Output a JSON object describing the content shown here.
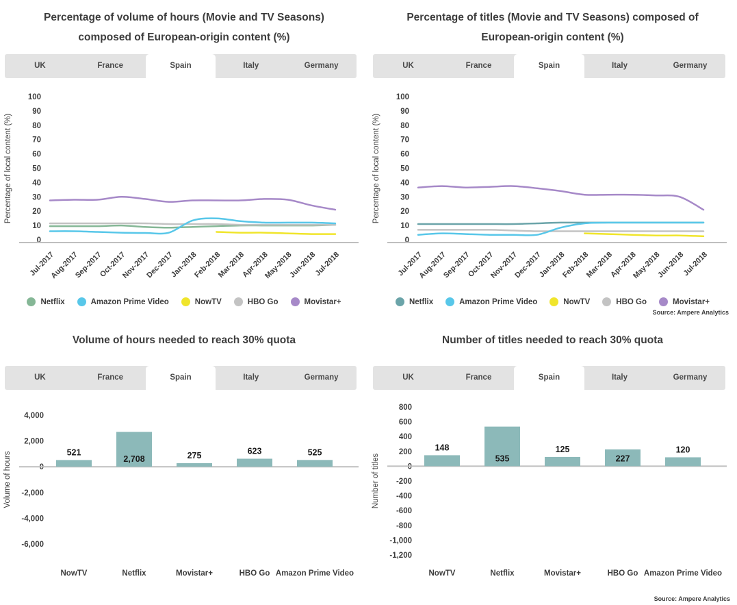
{
  "tabs": {
    "items": [
      "UK",
      "France",
      "Spain",
      "Italy",
      "Germany"
    ],
    "selected": "Spain"
  },
  "colors": {
    "netflix_green": "#85b796",
    "netflix_teal": "#6ba4a9",
    "amazon_cyan": "#58c7e9",
    "nowtv_yellow": "#f0e52b",
    "hbo_gray": "#c3c3c3",
    "movistar_purple": "#a689c8",
    "bar_teal": "#8cb9b9",
    "axis_line": "#bfbfbf",
    "text_dark": "#3d3d3d"
  },
  "source_note": "Source: Ampere Analytics",
  "chart_data": [
    {
      "type": "line",
      "title": "Percentage of volume of hours (Movie and TV Seasons) composed of European-origin content (%)",
      "ylabel": "Percentage of local content (%)",
      "ylim": [
        0,
        100
      ],
      "ytick_step": 10,
      "grid": false,
      "legend_position": "bottom",
      "x": [
        "Jul-2017",
        "Aug-2017",
        "Sep-2017",
        "Oct-2017",
        "Nov-2017",
        "Dec-2017",
        "Jan-2018",
        "Feb-2018",
        "Mar-2018",
        "Apr-2018",
        "May-2018",
        "Jun-2018",
        "Jul-2018"
      ],
      "series": [
        {
          "name": "Netflix",
          "color_key": "netflix_green",
          "values": [
            9.5,
            9.5,
            9.5,
            10,
            9,
            8.5,
            9,
            9.5,
            10,
            10,
            10,
            10,
            10.5
          ]
        },
        {
          "name": "HBO Go",
          "color_key": "hbo_gray",
          "values": [
            11.5,
            11.5,
            11.5,
            11.5,
            11.5,
            11,
            11,
            11,
            10.5,
            10.5,
            10.5,
            10.5,
            10.5
          ]
        },
        {
          "name": "Amazon Prime Video",
          "color_key": "amazon_cyan",
          "values": [
            6,
            6,
            5.5,
            5,
            4.8,
            5,
            13.5,
            15,
            13,
            12,
            12,
            12,
            11.5
          ]
        },
        {
          "name": "NowTV",
          "color_key": "nowtv_yellow",
          "values": [
            null,
            null,
            null,
            null,
            null,
            null,
            null,
            5.5,
            5,
            5,
            4.5,
            4,
            4
          ]
        },
        {
          "name": "Movistar+",
          "color_key": "movistar_purple",
          "values": [
            27.5,
            28,
            28,
            30,
            28.5,
            26.5,
            27.5,
            27.5,
            27.5,
            28.5,
            28,
            24,
            21
          ]
        }
      ],
      "legend": [
        "Netflix",
        "Amazon Prime Video",
        "NowTV",
        "HBO Go",
        "Movistar+"
      ],
      "show_source": false
    },
    {
      "type": "line",
      "title": "Percentage of titles (Movie and TV Seasons) composed of European-origin content (%)",
      "ylabel": "Percentage of local content (%)",
      "ylim": [
        0,
        100
      ],
      "ytick_step": 10,
      "grid": false,
      "legend_position": "bottom",
      "x": [
        "Jul-2017",
        "Aug-2017",
        "Sep-2017",
        "Oct-2017",
        "Nov-2017",
        "Dec-2017",
        "Jan-2018",
        "Feb-2018",
        "Mar-2018",
        "Apr-2018",
        "May-2018",
        "Jun-2018",
        "Jul-2018"
      ],
      "series": [
        {
          "name": "Netflix",
          "color_key": "netflix_teal",
          "values": [
            11,
            11,
            11,
            11,
            11,
            11.5,
            12,
            12,
            12,
            12,
            12,
            12,
            12
          ]
        },
        {
          "name": "HBO Go",
          "color_key": "hbo_gray",
          "values": [
            7,
            7,
            7,
            7,
            6.5,
            6,
            6,
            6,
            6,
            6,
            6,
            6,
            6
          ]
        },
        {
          "name": "Amazon Prime Video",
          "color_key": "amazon_cyan",
          "values": [
            3.5,
            4.5,
            4,
            3.5,
            3.5,
            3.5,
            8.5,
            11.5,
            12,
            12,
            12,
            12,
            12
          ]
        },
        {
          "name": "NowTV",
          "color_key": "nowtv_yellow",
          "values": [
            null,
            null,
            null,
            null,
            null,
            null,
            null,
            4.5,
            4,
            3.5,
            3,
            3,
            2.5
          ]
        },
        {
          "name": "Movistar+",
          "color_key": "movistar_purple",
          "values": [
            36.5,
            37.5,
            36.5,
            37,
            37.5,
            36,
            34,
            31.5,
            31.5,
            31.5,
            31,
            30,
            21
          ]
        }
      ],
      "legend": [
        "Netflix",
        "Amazon Prime Video",
        "NowTV",
        "HBO Go",
        "Movistar+"
      ],
      "show_source": true
    },
    {
      "type": "bar",
      "title": "Volume of hours needed to reach 30% quota",
      "ylabel": "Volume of hours",
      "categories": [
        "NowTV",
        "Netflix",
        "Movistar+",
        "HBO Go",
        "Amazon Prime Video"
      ],
      "values": [
        521,
        2708,
        275,
        623,
        525
      ],
      "value_labels": [
        "521",
        "2,708",
        "275",
        "623",
        "525"
      ],
      "yticks": [
        4000,
        2000,
        0,
        -2000,
        -4000,
        -6000
      ],
      "ytick_labels": [
        "4,000",
        "2,000",
        "0",
        "-2,000",
        "-4,000",
        "-6,000"
      ],
      "grid": false,
      "show_source": false
    },
    {
      "type": "bar",
      "title": "Number of titles needed to reach 30% quota",
      "ylabel": "Number of titles",
      "categories": [
        "NowTV",
        "Netflix",
        "Movistar+",
        "HBO Go",
        "Amazon Prime Video"
      ],
      "values": [
        148,
        535,
        125,
        227,
        120
      ],
      "value_labels": [
        "148",
        "535",
        "125",
        "227",
        "120"
      ],
      "yticks": [
        800,
        600,
        400,
        200,
        0,
        -200,
        -400,
        -600,
        -800,
        -1000,
        -1200
      ],
      "ytick_labels": [
        "800",
        "600",
        "400",
        "200",
        "0",
        "-200",
        "-400",
        "-600",
        "-800",
        "-1,000",
        "-1,200"
      ],
      "grid": false,
      "show_source": true
    }
  ]
}
